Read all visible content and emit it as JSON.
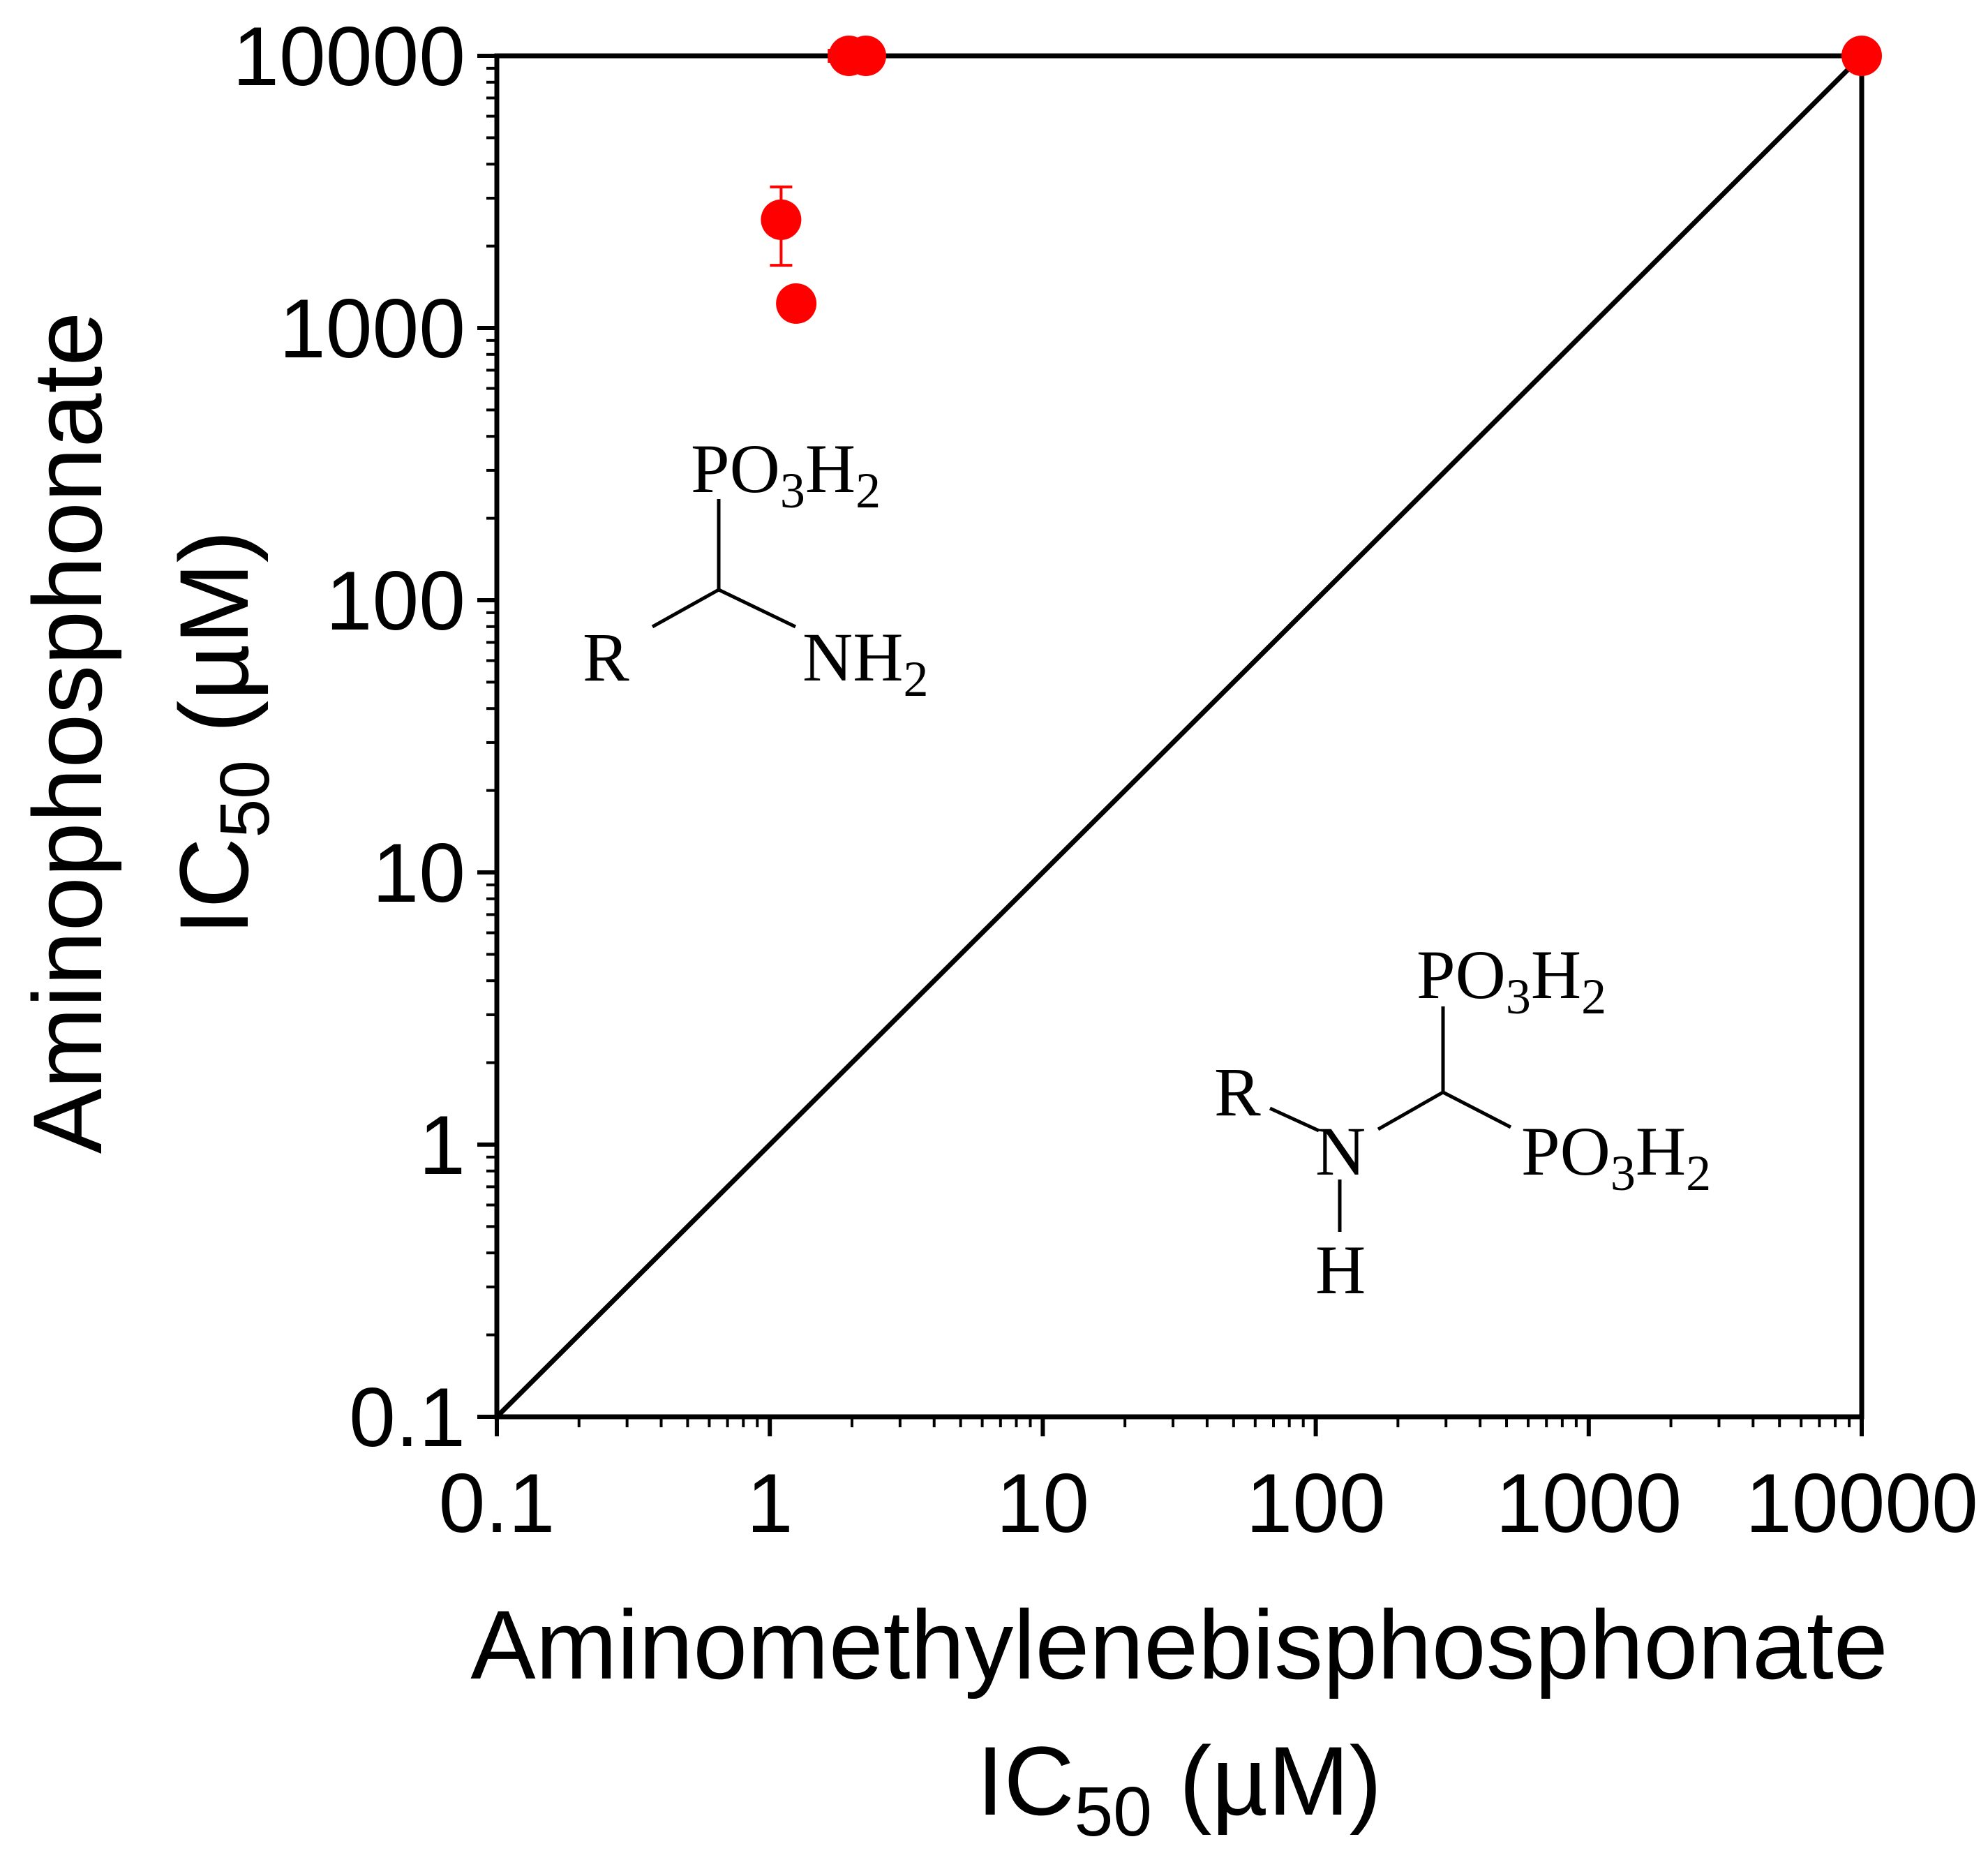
{
  "chart_data": {
    "type": "scatter",
    "x_scale": "log",
    "y_scale": "log",
    "xlim": [
      0.1,
      10000
    ],
    "ylim": [
      0.1,
      10000
    ],
    "x_ticks": [
      0.1,
      1,
      10,
      100,
      1000,
      10000
    ],
    "x_tick_labels": [
      "0.1",
      "1",
      "10",
      "100",
      "1000",
      "10000"
    ],
    "y_ticks": [
      0.1,
      1,
      10,
      100,
      1000,
      10000
    ],
    "y_tick_labels": [
      "0.1",
      "1",
      "10",
      "100",
      "1000",
      "10000"
    ],
    "xlabel_line1": "Aminomethylenebisphosphonate",
    "xlabel_line2_main": "IC",
    "xlabel_line2_sub": "50",
    "xlabel_line2_unit": " (µM)",
    "ylabel_line1": "Aminophosphonate",
    "ylabel_line2_main": "IC",
    "ylabel_line2_sub": "50",
    "ylabel_line2_unit": " (µM)",
    "grid": false,
    "reference_line": {
      "x": [
        0.1,
        10000
      ],
      "y": [
        0.1,
        10000
      ],
      "color": "#000000"
    },
    "point_color": "#ff0000",
    "points": [
      {
        "x": 1.95,
        "y": 10000,
        "xerr": [
          1.65,
          2.3
        ]
      },
      {
        "x": 2.25,
        "y": 10000,
        "xerr": [
          2.0,
          2.6
        ]
      },
      {
        "x": 1.1,
        "y": 2500,
        "yerr": [
          1700,
          3300
        ]
      },
      {
        "x": 1.25,
        "y": 1230
      },
      {
        "x": 10000,
        "y": 10000
      }
    ]
  },
  "structures": {
    "aminophosphonate": {
      "group_top": "PO",
      "group_top_sub3": "3",
      "group_top_h": "H",
      "group_top_sub2": "2",
      "r": "R",
      "amine": "NH",
      "amine_sub": "2"
    },
    "bisphosphonate": {
      "group_top": "PO",
      "group_top_sub3": "3",
      "group_top_h": "H",
      "group_top_sub2": "2",
      "group_right": "PO",
      "group_right_sub3": "3",
      "group_right_h": "H",
      "group_right_sub2": "2",
      "r": "R",
      "n": "N",
      "h": "H"
    }
  }
}
